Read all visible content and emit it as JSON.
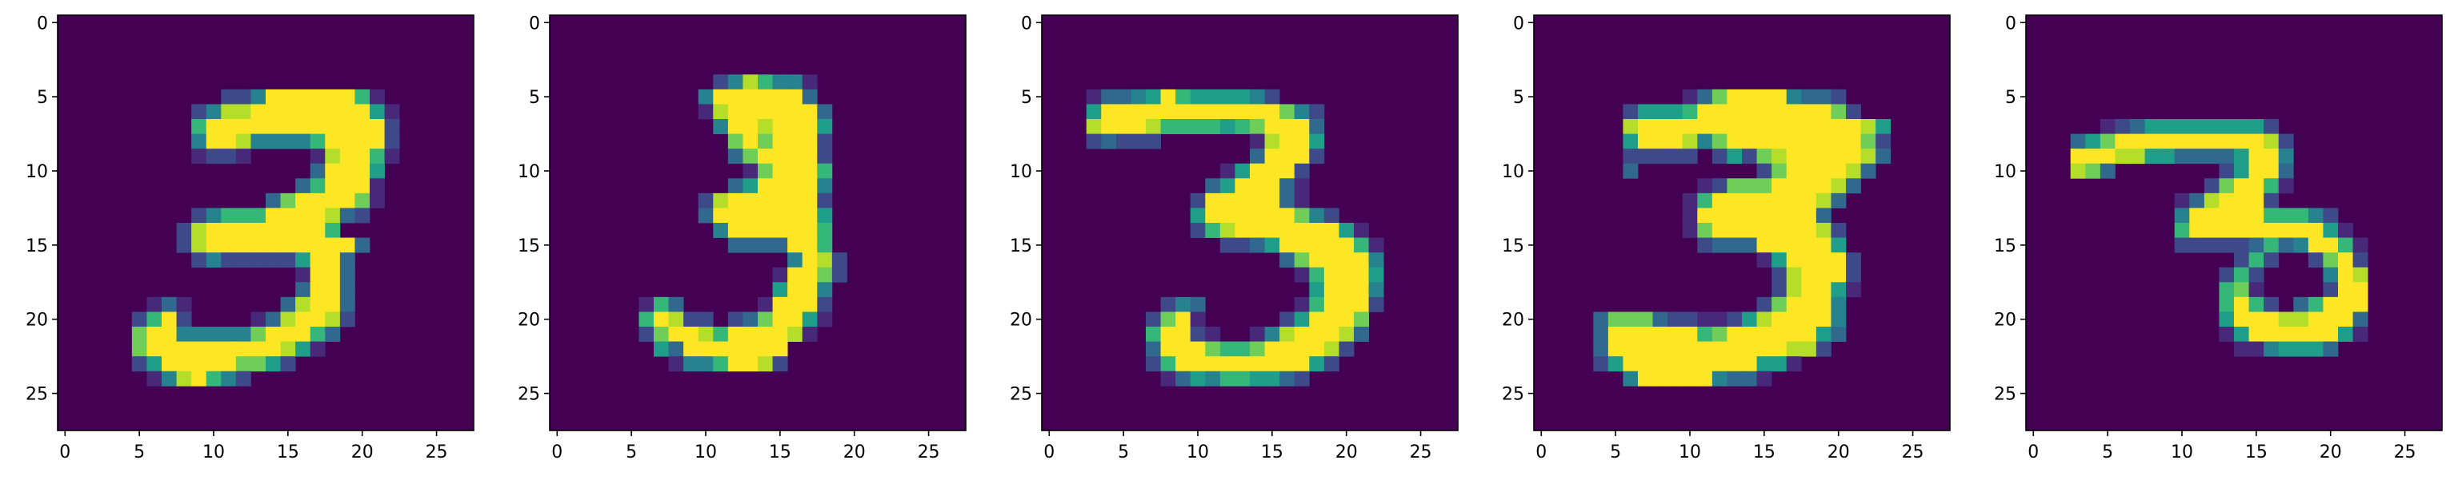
{
  "chart_data": {
    "type": "heatmap",
    "colormap": "viridis",
    "intensity_levels": "0-9 per pixel ('.' = 0)",
    "colors": [
      "#440154",
      "#482878",
      "#3e4989",
      "#31688e",
      "#26828e",
      "#1f9e89",
      "#35b779",
      "#6ece58",
      "#b5de2b",
      "#fde725"
    ],
    "xlim": [
      -0.5,
      27.5
    ],
    "ylim": [
      27.5,
      -0.5
    ],
    "xticks": [
      "0",
      "5",
      "10",
      "15",
      "20",
      "25"
    ],
    "yticks": [
      "0",
      "5",
      "10",
      "15",
      "20",
      "25"
    ],
    "panels": [
      {
        "rows": {
          "5": "...........22499999961......",
          "6": ".........24889999999951.....",
          "7": ".........69999999999992.....",
          "8": ".........49984444699992.....",
          "9": ".........1221....18996 1.....",
          "10": ".................39995......",
          "11": "................369991......",
          "12": "..............3799997 1......",
          "13": ".........246669999832.......",
          "14": "........289999999 96.........",
          "15": "........2899999999993........",
          "16": ".........24222225993........",
          "17": "................1993........",
          "18": "................3993........",
          "19": "......131......38993........",
          "20": ".....2692....1389982........",
          "21": ".....7994444479996 3.........",
          "22": ".....7999999999851..........",
          "23": ".....2599999775 2............",
          "24": "......1489642..............."
        }
      },
      {
        "rows": {
          "4": "...........2486441..........",
          "5": "..........49999993..........",
          "6": "..........189999993.........",
          "7": "...........49989995.........",
          "8": "............7979992.........",
          "9": "............3799992.........",
          "10": ".............179996.........",
          "11": "............3599994.........",
          "12": "..........289999992.........",
          "13": "..........399999995.........",
          "14": "...........49999996.........",
          "15": "............3333996.........",
          "16": "................4982........",
          "17": "...............19972........",
          "18": "...............5994.........",
          "19": "......163.....19992.........",
          "20": "......69822.237995 1.........",
          "21": "......279986999981..........",
          "22": ".......539999999............",
          "23": "........14469982............"
        }
      },
      {
        "rows": {
          "5": "...1334596555542............",
          "6": "...5999999999999742.........",
          "7": "...8999866665679993.........",
          "8": "...23222......18995.........",
          "9": "..............39992.........",
          "10": "............159992..........",
          "11": "...........3599931..........",
          "12": "..........29999931..........",
          "13": "..........5999999742........",
          "14": "..........268999999951......",
          "15": "............223599999 61.....",
          "16": "................3799994.....",
          "17": ".................169995.....",
          "18": "..................59994.....",
          "19": "........243......169992.....",
          "20": ".......2791.....259997......",
          "21": ".......69921..14899983......",
          "22": ".......39997667999982.......",
          "23": ".......2699999999952........",
          "24": "........1354665532.........."
        }
      },
      {
        "rows": {
          "5": "..........137999943 32.......",
          "6": "......2555699999999972......",
          "7": "......899999999999999985.....",
          "8": "......599984799999999972....",
          "9": "......22222.252789999983....",
          "10": "......3........27999983.....",
          "11": "...........12777999983......",
          "12": "..........16999999983.......",
          "13": "..........1999999993........",
          "14": "..........17999999982.......",
          "15": "...........2333999995.......",
          "16": "...............1599992......",
          "17": "................289992......",
          "18": "................289951......",
          "19": "...............279994.......",
          "20": "....37773221125899994.......",
          "21": "....39999996799999953.......",
          "22": "....3999999999999882........",
          "23": "....25999999999551..........",
          "24": "......4999994331............"
        }
      },
      {
        "rows": {
          "7": ".....123555555552...........",
          "8": "...35799999999998 2..........",
          "9": "...999885533335994..........",
          "10": "...873.......25993..........",
          "11": "............279961..........",
          "12": "..........1389992...........",
          "13": "..........49999966642.......",
          "14": "..........699999999951......",
          "15": "..........2222236349961.....",
          "16": "..............262..2792.....",
          "17": ".............262....498.....",
          "18": ".............671....299.....",
          "19": ".............6962.36999.....",
          "20": ".............5999889993.....",
          "21": ".............1599999951.....",
          "22": "..............1145553......."
        }
      }
    ]
  }
}
